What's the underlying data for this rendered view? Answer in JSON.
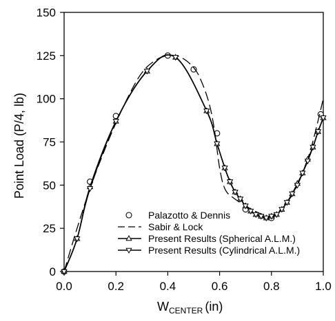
{
  "chart_data": {
    "type": "line",
    "xlabel_main": "W",
    "xlabel_sub": "CENTER",
    "xlabel_unit": "(in)",
    "ylabel": "Point Load (P/4, lb)",
    "xlim": [
      0.0,
      1.0
    ],
    "ylim": [
      0,
      150
    ],
    "xticks": [
      "0.0",
      "0.2",
      "0.4",
      "0.6",
      "0.8",
      "1.0"
    ],
    "yticks": [
      "0",
      "25",
      "50",
      "75",
      "100",
      "125",
      "150"
    ],
    "grid": false,
    "legend_position": "bottom-left",
    "series": [
      {
        "name": "Palazotto & Dennis",
        "marker": "circle",
        "line": "none",
        "x": [
          0.0,
          0.1,
          0.2,
          0.4,
          0.5,
          0.59,
          0.7,
          0.8,
          0.99
        ],
        "y": [
          0,
          52,
          90,
          125,
          117,
          80,
          36,
          31,
          91
        ]
      },
      {
        "name": "Sabir & Lock",
        "marker": "none",
        "line": "dashed",
        "x": [
          0.0,
          0.05,
          0.1,
          0.15,
          0.2,
          0.25,
          0.3,
          0.35,
          0.4,
          0.45,
          0.5,
          0.53,
          0.56,
          0.58,
          0.6,
          0.62,
          0.65,
          0.7,
          0.75,
          0.8,
          0.85,
          0.9,
          0.95,
          1.0
        ],
        "y": [
          0,
          25,
          48,
          68,
          86,
          102,
          115,
          122,
          125,
          124,
          118,
          110,
          97,
          82,
          60,
          48,
          43,
          38,
          34,
          32,
          38,
          50,
          70,
          100
        ]
      },
      {
        "name": "Present Results (Spherical A.L.M.)",
        "marker": "triangle-up",
        "line": "solid",
        "x": [
          0.0,
          0.05,
          0.1,
          0.2,
          0.32,
          0.43,
          0.55,
          0.59,
          0.62,
          0.64,
          0.66,
          0.68,
          0.7,
          0.72,
          0.74,
          0.76,
          0.78,
          0.8,
          0.82,
          0.84,
          0.86,
          0.88,
          0.9,
          0.92,
          0.94,
          0.96,
          0.98,
          1.0
        ],
        "y": [
          0,
          19,
          49,
          87,
          116,
          124,
          93,
          74,
          60,
          52,
          46,
          42,
          38,
          35,
          33,
          32,
          31,
          32,
          33,
          36,
          40,
          45,
          51,
          57,
          65,
          72,
          81,
          89
        ]
      },
      {
        "name": "Present Results (Cylindrical A.L.M.)",
        "marker": "triangle-down",
        "line": "solid",
        "x": [
          0.0,
          0.05,
          0.1,
          0.2,
          0.32,
          0.43,
          0.55,
          0.59,
          0.62,
          0.64,
          0.66,
          0.68,
          0.7,
          0.72,
          0.74,
          0.76,
          0.78,
          0.8,
          0.82,
          0.84,
          0.86,
          0.88,
          0.9,
          0.92,
          0.94,
          0.96,
          0.98,
          1.0
        ],
        "y": [
          0,
          19,
          48,
          87,
          116,
          124,
          93,
          74,
          60,
          52,
          46,
          42,
          38,
          35,
          33,
          32,
          31,
          32,
          33,
          36,
          40,
          45,
          50,
          57,
          64,
          72,
          81,
          89
        ]
      }
    ]
  }
}
